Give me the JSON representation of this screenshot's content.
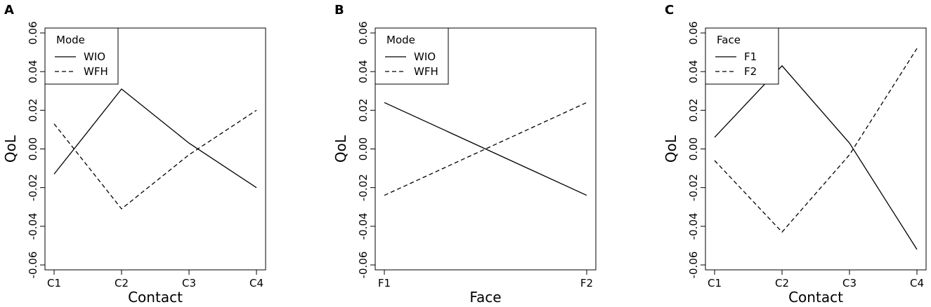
{
  "chart_data": [
    {
      "panel": "A",
      "type": "line",
      "xlabel": "Contact",
      "ylabel": "QoL",
      "categories": [
        "C1",
        "C2",
        "C3",
        "C4"
      ],
      "ylim": [
        -0.06,
        0.06
      ],
      "yticks": [
        "-0.06",
        "-0.04",
        "-0.02",
        "0.00",
        "0.02",
        "0.04",
        "0.06"
      ],
      "legend_title": "Mode",
      "legend_position": "top-left",
      "series": [
        {
          "name": "WIO",
          "dash": "solid",
          "values": [
            -0.013,
            0.031,
            0.003,
            -0.02
          ]
        },
        {
          "name": "WFH",
          "dash": "dashed",
          "values": [
            0.013,
            -0.031,
            -0.003,
            0.02
          ]
        }
      ]
    },
    {
      "panel": "B",
      "type": "line",
      "xlabel": "Face",
      "ylabel": "QoL",
      "categories": [
        "F1",
        "F2"
      ],
      "ylim": [
        -0.06,
        0.06
      ],
      "yticks": [
        "-0.06",
        "-0.04",
        "-0.02",
        "0.00",
        "0.02",
        "0.04",
        "0.06"
      ],
      "legend_title": "Mode",
      "legend_position": "top-left",
      "series": [
        {
          "name": "WIO",
          "dash": "solid",
          "values": [
            0.024,
            -0.024
          ]
        },
        {
          "name": "WFH",
          "dash": "dashed",
          "values": [
            -0.024,
            0.024
          ]
        }
      ]
    },
    {
      "panel": "C",
      "type": "line",
      "xlabel": "Contact",
      "ylabel": "QoL",
      "categories": [
        "C1",
        "C2",
        "C3",
        "C4"
      ],
      "ylim": [
        -0.06,
        0.06
      ],
      "yticks": [
        "-0.06",
        "-0.04",
        "-0.02",
        "0.00",
        "0.02",
        "0.04",
        "0.06"
      ],
      "legend_title": "Face",
      "legend_position": "top-left",
      "series": [
        {
          "name": "F1",
          "dash": "solid",
          "values": [
            0.006,
            0.043,
            0.003,
            -0.052
          ]
        },
        {
          "name": "F2",
          "dash": "dashed",
          "values": [
            -0.006,
            -0.043,
            -0.003,
            0.052
          ]
        }
      ]
    }
  ]
}
